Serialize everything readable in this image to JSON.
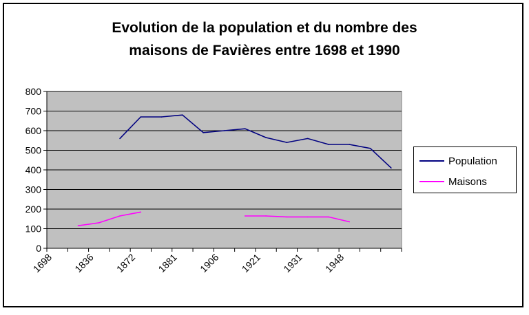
{
  "chart_data": {
    "type": "line",
    "title": [
      "Evolution de la population et du nombre des",
      "maisons de Favières entre 1698 et 1990"
    ],
    "categories": [
      "1698",
      "",
      "1836",
      "",
      "1872",
      "",
      "1881",
      "",
      "1906",
      "",
      "1921",
      "",
      "1931",
      "",
      "1948",
      "",
      ""
    ],
    "ylim": [
      0,
      800
    ],
    "yticks": [
      0,
      100,
      200,
      300,
      400,
      500,
      600,
      700,
      800
    ],
    "grid": true,
    "legend_position": "right",
    "series": [
      {
        "name": "Population",
        "color": "#000080",
        "values": [
          null,
          null,
          null,
          560,
          670,
          670,
          680,
          590,
          600,
          610,
          565,
          540,
          560,
          530,
          530,
          510,
          410
        ]
      },
      {
        "name": "Maisons",
        "color": "#ff00ff",
        "values": [
          null,
          115,
          130,
          165,
          185,
          null,
          null,
          null,
          null,
          165,
          165,
          160,
          160,
          160,
          135,
          null,
          null
        ]
      }
    ]
  },
  "legend": {
    "items": [
      "Population",
      "Maisons"
    ]
  }
}
